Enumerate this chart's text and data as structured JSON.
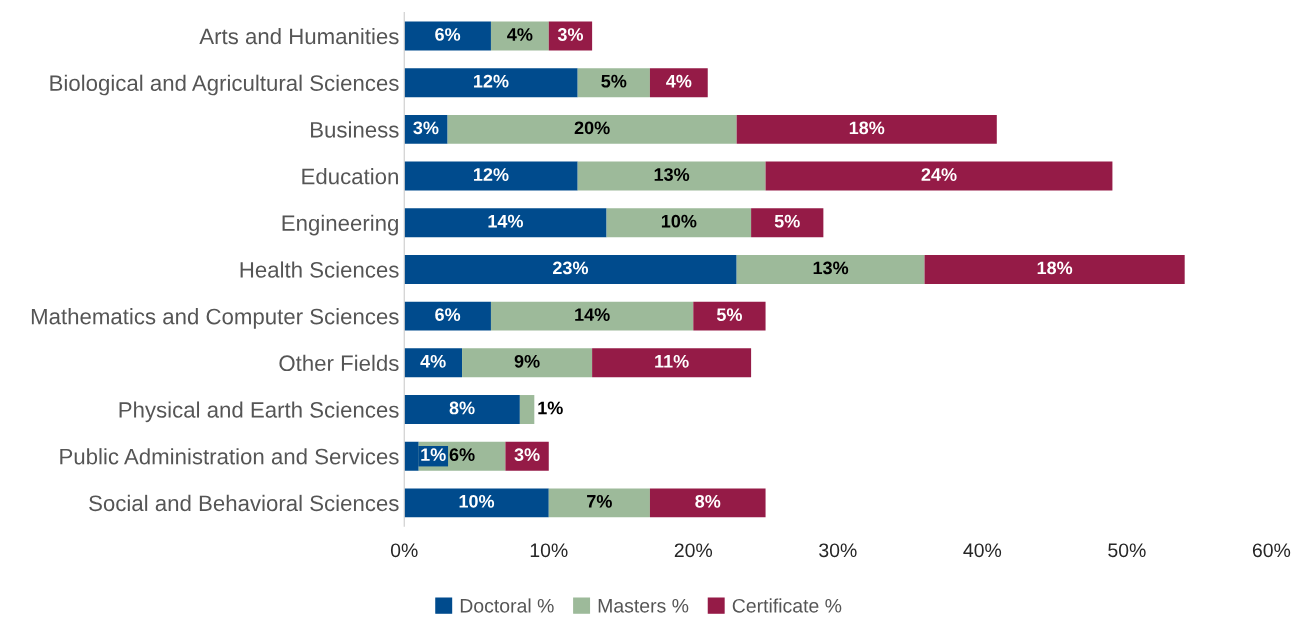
{
  "chart_data": {
    "type": "bar",
    "orientation": "horizontal",
    "stacked": true,
    "categories": [
      "Arts and Humanities",
      "Biological and Agricultural Sciences",
      "Business",
      "Education",
      "Engineering",
      "Health Sciences",
      "Mathematics and Computer Sciences",
      "Other Fields",
      "Physical and Earth Sciences",
      "Public Administration and Services",
      "Social and Behavioral Sciences"
    ],
    "series": [
      {
        "name": "Doctoral %",
        "color": "#004b8d",
        "values": [
          6,
          12,
          3,
          12,
          14,
          23,
          6,
          4,
          8,
          1,
          10
        ],
        "value_labels": [
          "6%",
          "12%",
          "3%",
          "12%",
          "14%",
          "23%",
          "6%",
          "4%",
          "8%",
          "1%",
          "10%"
        ]
      },
      {
        "name": "Masters %",
        "color": "#9dba9a",
        "values": [
          4,
          5,
          20,
          13,
          10,
          13,
          14,
          9,
          1,
          6,
          7
        ],
        "value_labels": [
          "4%",
          "5%",
          "20%",
          "13%",
          "10%",
          "13%",
          "14%",
          "9%",
          "1%",
          "6%",
          "7%"
        ]
      },
      {
        "name": "Certificate %",
        "color": "#951b47",
        "values": [
          3,
          4,
          18,
          24,
          5,
          18,
          5,
          11,
          null,
          3,
          8
        ],
        "value_labels": [
          "3%",
          "4%",
          "18%",
          "24%",
          "5%",
          "18%",
          "5%",
          "11%",
          null,
          "3%",
          "8%"
        ]
      }
    ],
    "xlim": [
      0,
      60
    ],
    "xticks": [
      {
        "value": 0,
        "label": "0%"
      },
      {
        "value": 10,
        "label": "10%"
      },
      {
        "value": 20,
        "label": "20%"
      },
      {
        "value": 30,
        "label": "30%"
      },
      {
        "value": 40,
        "label": "40%"
      },
      {
        "value": 50,
        "label": "50%"
      },
      {
        "value": 60,
        "label": "60%"
      }
    ],
    "grid": false,
    "legend": "bottom"
  }
}
